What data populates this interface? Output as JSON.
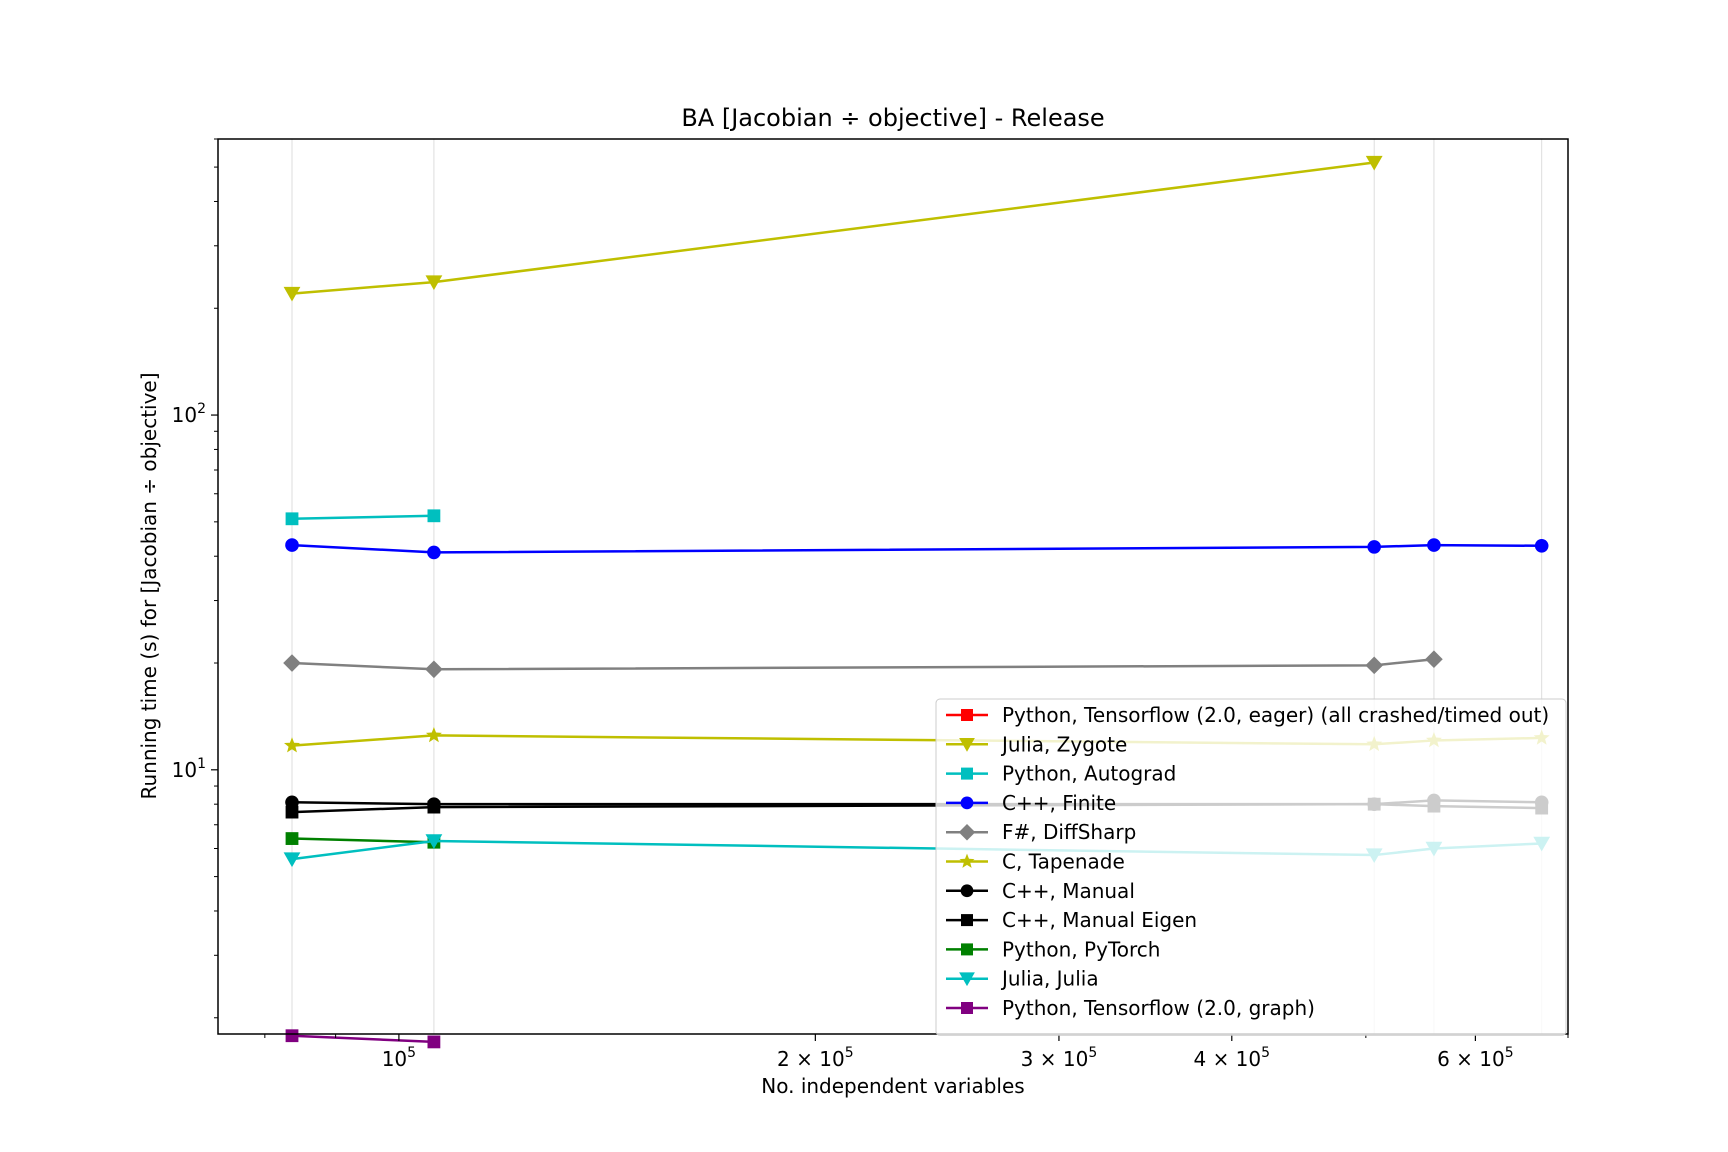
{
  "chart_data": {
    "type": "line",
    "title": "BA [Jacobian ÷ objective] - Release",
    "xlabel": "No. independent variables",
    "ylabel": "Running time (s) for [Jacobian ÷ objective]",
    "x_scale": "log",
    "y_scale": "log",
    "xlim": [
      74000,
      700000
    ],
    "ylim": [
      1.8,
      600
    ],
    "x_ticks": [
      {
        "value": 100000,
        "base": "10",
        "exp": "5"
      },
      {
        "value": 200000,
        "base": "2 × 10",
        "exp": "5"
      },
      {
        "value": 300000,
        "base": "3 × 10",
        "exp": "5"
      },
      {
        "value": 400000,
        "base": "4 × 10",
        "exp": "5"
      },
      {
        "value": 600000,
        "base": "6 × 10",
        "exp": "5"
      }
    ],
    "y_ticks": [
      {
        "value": 10,
        "base": "10",
        "exp": "1"
      },
      {
        "value": 100,
        "base": "10",
        "exp": "2"
      }
    ],
    "grid": "x-major",
    "legend_position": "lower-right",
    "series": [
      {
        "name": "Python, Tensorflow (2.0, eager) (all crashed/timed out)",
        "color": "#ff0000",
        "marker": "square",
        "x": [],
        "y": []
      },
      {
        "name": "Julia, Zygote",
        "color": "#bfbf00",
        "marker": "triangle-down",
        "x": [
          83700,
          106000,
          507000
        ],
        "y": [
          220,
          237,
          515
        ]
      },
      {
        "name": "Python, Autograd",
        "color": "#00bfbf",
        "marker": "square",
        "x": [
          83700,
          106000
        ],
        "y": [
          51,
          52
        ]
      },
      {
        "name": "C++, Finite",
        "color": "#0000ff",
        "marker": "circle",
        "x": [
          83700,
          106000,
          507000,
          560000,
          670000
        ],
        "y": [
          43,
          41,
          42.5,
          43,
          42.8
        ]
      },
      {
        "name": "F#, DiffSharp",
        "color": "#808080",
        "marker": "diamond",
        "x": [
          83700,
          106000,
          507000,
          560000
        ],
        "y": [
          20,
          19.2,
          19.7,
          20.5
        ]
      },
      {
        "name": "C, Tapenade",
        "color": "#bfbf00",
        "marker": "star",
        "x": [
          83700,
          106000,
          507000,
          560000,
          670000
        ],
        "y": [
          11.7,
          12.5,
          11.8,
          12.1,
          12.3
        ]
      },
      {
        "name": "C++, Manual",
        "color": "#000000",
        "marker": "circle",
        "x": [
          83700,
          106000,
          507000,
          560000,
          670000
        ],
        "y": [
          8.1,
          8.0,
          8.0,
          8.2,
          8.1
        ]
      },
      {
        "name": "C++, Manual Eigen",
        "color": "#000000",
        "marker": "square",
        "x": [
          83700,
          106000,
          507000,
          560000,
          670000
        ],
        "y": [
          7.6,
          7.85,
          8.0,
          7.9,
          7.8
        ]
      },
      {
        "name": "Python, PyTorch",
        "color": "#008000",
        "marker": "square",
        "x": [
          83700,
          106000
        ],
        "y": [
          6.4,
          6.25
        ]
      },
      {
        "name": "Julia, Julia",
        "color": "#00bfbf",
        "marker": "triangle-down",
        "x": [
          83700,
          106000,
          507000,
          560000,
          670000
        ],
        "y": [
          5.6,
          6.3,
          5.75,
          6.0,
          6.2
        ]
      },
      {
        "name": "Python, Tensorflow (2.0, graph)",
        "color": "#800080",
        "marker": "square",
        "x": [
          83700,
          106000
        ],
        "y": [
          1.78,
          1.71
        ]
      }
    ]
  }
}
